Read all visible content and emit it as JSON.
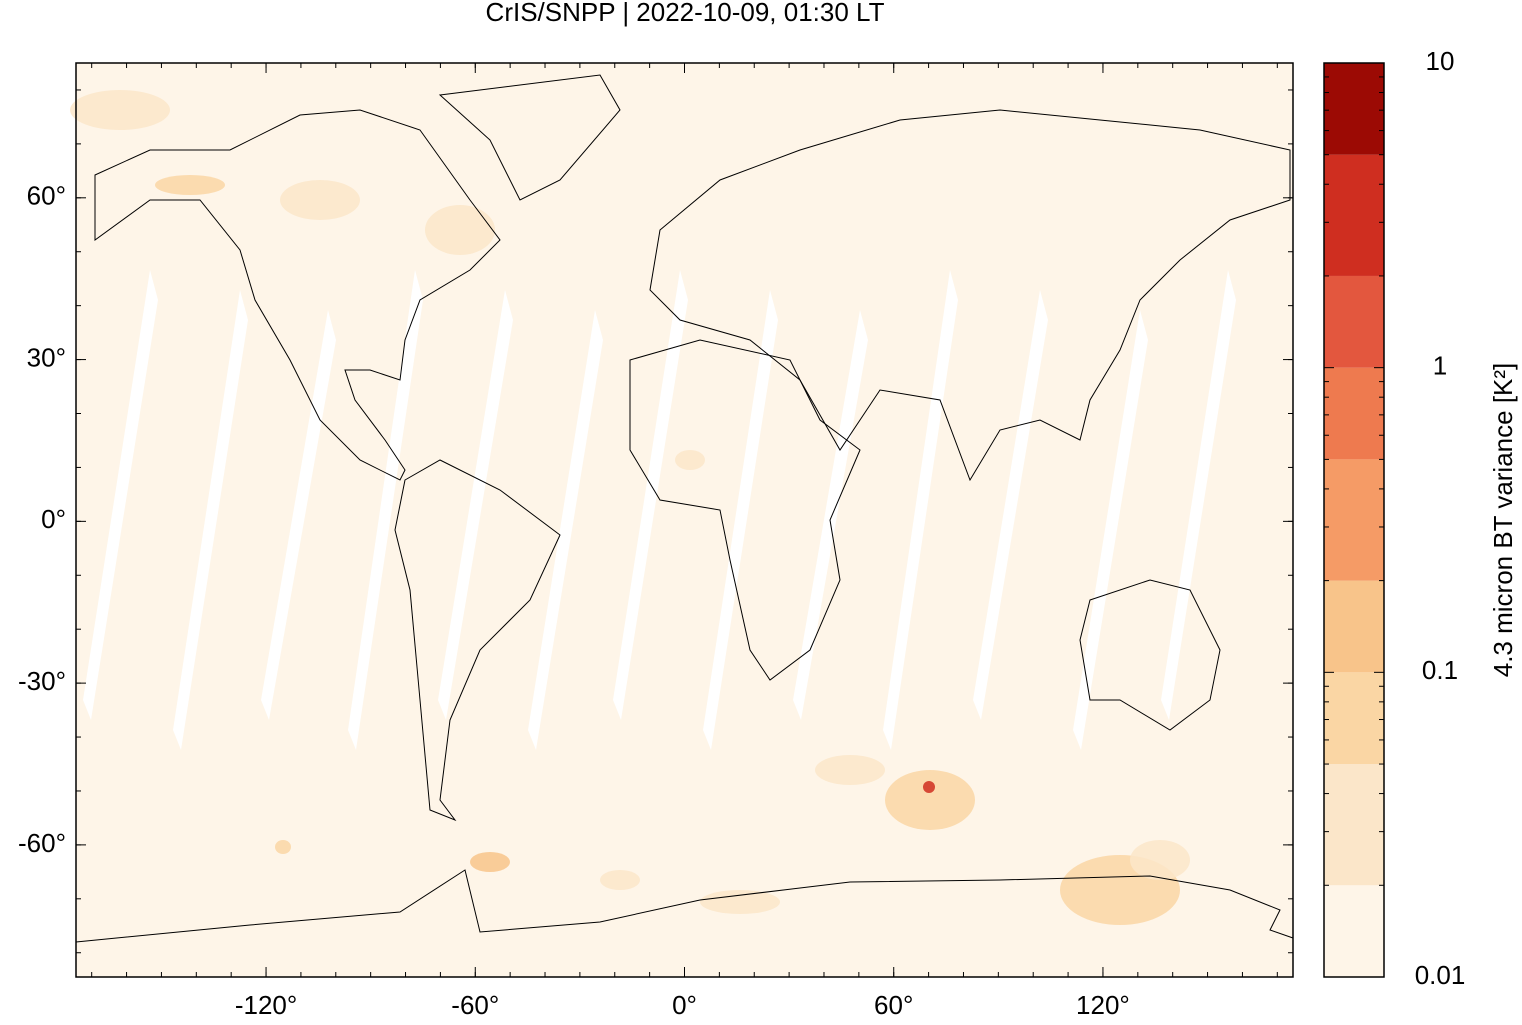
{
  "chart_data": {
    "type": "heatmap-map",
    "title": "CrIS/SNPP | 2022-10-09, 01:30 LT",
    "xlim": [
      -174.5,
      174.5
    ],
    "ylim": [
      -84.5,
      85
    ],
    "xticks": [
      {
        "value": -120,
        "label": "-120°"
      },
      {
        "value": -60,
        "label": "-60°"
      },
      {
        "value": 0,
        "label": "0°"
      },
      {
        "value": 60,
        "label": "60°"
      },
      {
        "value": 120,
        "label": "120°"
      }
    ],
    "yticks": [
      {
        "value": 60,
        "label": "60°"
      },
      {
        "value": 30,
        "label": "30°"
      },
      {
        "value": 0,
        "label": "0°"
      },
      {
        "value": -30,
        "label": "-30°"
      },
      {
        "value": -60,
        "label": "-60°"
      }
    ],
    "colorbar": {
      "label": "4.3 micron BT variance [K²]",
      "log": true,
      "lim": [
        0.01,
        10
      ],
      "ticks": [
        0.01,
        0.1,
        1,
        10
      ],
      "levels": [
        0.01,
        0.02,
        0.05,
        0.1,
        0.2,
        0.5,
        1,
        2,
        5,
        10
      ],
      "colors": [
        "#fef5e8",
        "#fbe6c9",
        "#fad6a4",
        "#f8c48a",
        "#f59b66",
        "#ee7a4f",
        "#e3573e",
        "#cf2e20",
        "#9c0a04"
      ]
    }
  }
}
